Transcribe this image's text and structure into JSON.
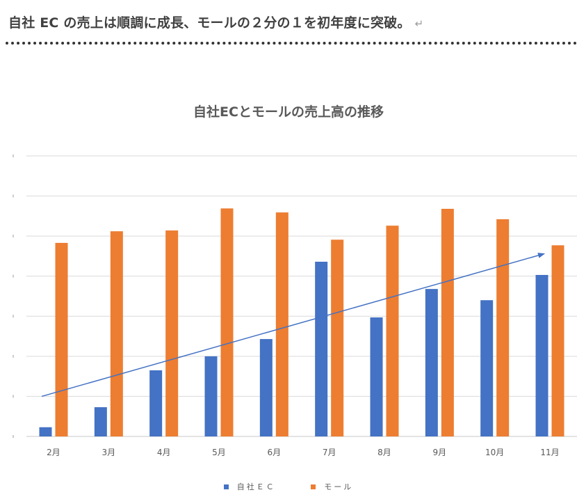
{
  "heading": {
    "text": "自社 EC の売上は順調に成長、モールの２分の１を初年度に突破。",
    "return_mark": "↵"
  },
  "chart_data": {
    "type": "bar",
    "title": "自社ECとモールの売上高の推移",
    "xlabel": "",
    "ylabel": "",
    "categories": [
      "2月",
      "3月",
      "4月",
      "5月",
      "6月",
      "7月",
      "8月",
      "9月",
      "10月",
      "11月"
    ],
    "series": [
      {
        "name": "自社ＥＣ",
        "color": "#4472C4",
        "values": [
          0.23,
          0.73,
          1.65,
          2.0,
          2.43,
          4.36,
          2.97,
          3.68,
          3.4,
          4.03
        ]
      },
      {
        "name": "モール",
        "color": "#ED7D31",
        "values": [
          4.83,
          5.12,
          5.14,
          5.69,
          5.59,
          4.91,
          5.26,
          5.68,
          5.42,
          4.77
        ]
      }
    ],
    "ylim": [
      0,
      7
    ],
    "y_tick_count": 8,
    "y_tick_labels_visible": false,
    "grid": true,
    "legend_position": "bottom",
    "annotations": [
      {
        "type": "trend-arrow",
        "color": "#4472C4",
        "from": {
          "category": "2月",
          "value": 1.0
        },
        "to": {
          "category": "11月",
          "value": 4.56
        }
      }
    ]
  }
}
